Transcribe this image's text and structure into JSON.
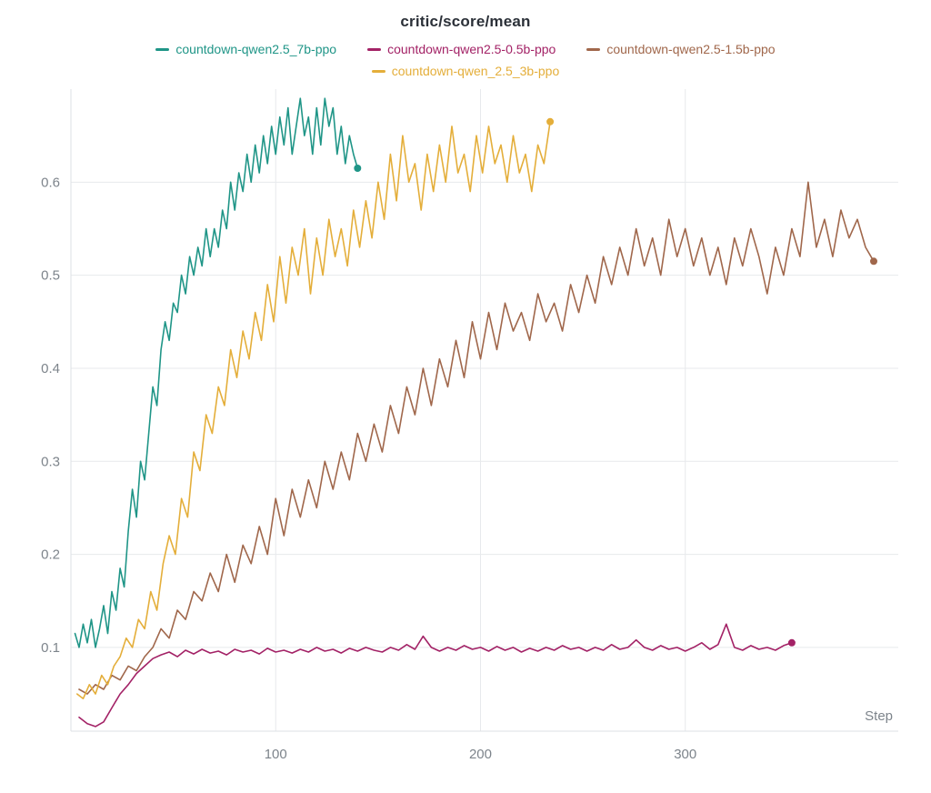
{
  "chart_data": {
    "type": "line",
    "title": "critic/score/mean",
    "xlabel": "Step",
    "ylabel": "",
    "x_ticks": [
      100,
      200,
      300
    ],
    "y_ticks": [
      0.1,
      0.2,
      0.3,
      0.4,
      0.5,
      0.6
    ],
    "xlim": [
      0,
      404
    ],
    "ylim": [
      0.01,
      0.7
    ],
    "grid": true,
    "legend_position": "top",
    "legend_rows": [
      [
        0,
        1,
        2
      ],
      [
        3
      ]
    ],
    "series": [
      {
        "name": "countdown-qwen2.5_7b-ppo",
        "color": "#1f9587",
        "x_start": 2,
        "x_step": 2,
        "end_marker": true,
        "values": [
          0.115,
          0.1,
          0.125,
          0.105,
          0.13,
          0.1,
          0.12,
          0.145,
          0.115,
          0.16,
          0.14,
          0.185,
          0.165,
          0.225,
          0.27,
          0.24,
          0.3,
          0.28,
          0.33,
          0.38,
          0.36,
          0.42,
          0.45,
          0.43,
          0.47,
          0.46,
          0.5,
          0.48,
          0.52,
          0.5,
          0.53,
          0.51,
          0.55,
          0.52,
          0.55,
          0.53,
          0.57,
          0.55,
          0.6,
          0.57,
          0.61,
          0.59,
          0.63,
          0.6,
          0.64,
          0.61,
          0.65,
          0.62,
          0.66,
          0.63,
          0.67,
          0.64,
          0.68,
          0.63,
          0.66,
          0.69,
          0.65,
          0.67,
          0.63,
          0.68,
          0.64,
          0.69,
          0.66,
          0.68,
          0.63,
          0.66,
          0.62,
          0.65,
          0.63,
          0.615
        ]
      },
      {
        "name": "countdown-qwen2.5-0.5b-ppo",
        "color": "#a32266",
        "x_start": 4,
        "x_step": 4,
        "end_marker": true,
        "values": [
          0.025,
          0.018,
          0.015,
          0.02,
          0.035,
          0.05,
          0.06,
          0.072,
          0.08,
          0.088,
          0.092,
          0.095,
          0.09,
          0.097,
          0.093,
          0.098,
          0.094,
          0.096,
          0.092,
          0.098,
          0.095,
          0.097,
          0.093,
          0.099,
          0.095,
          0.097,
          0.094,
          0.098,
          0.095,
          0.1,
          0.096,
          0.098,
          0.094,
          0.099,
          0.096,
          0.1,
          0.097,
          0.095,
          0.1,
          0.097,
          0.103,
          0.098,
          0.112,
          0.1,
          0.096,
          0.1,
          0.097,
          0.102,
          0.098,
          0.1,
          0.096,
          0.101,
          0.097,
          0.1,
          0.095,
          0.099,
          0.096,
          0.1,
          0.097,
          0.102,
          0.098,
          0.1,
          0.096,
          0.1,
          0.097,
          0.103,
          0.098,
          0.1,
          0.108,
          0.1,
          0.097,
          0.102,
          0.098,
          0.1,
          0.096,
          0.1,
          0.105,
          0.098,
          0.103,
          0.125,
          0.1,
          0.097,
          0.102,
          0.098,
          0.1,
          0.097,
          0.102,
          0.105
        ]
      },
      {
        "name": "countdown-qwen2.5-1.5b-ppo",
        "color": "#a0674b",
        "x_start": 4,
        "x_step": 4,
        "end_marker": true,
        "values": [
          0.055,
          0.05,
          0.06,
          0.055,
          0.07,
          0.065,
          0.08,
          0.075,
          0.09,
          0.1,
          0.12,
          0.11,
          0.14,
          0.13,
          0.16,
          0.15,
          0.18,
          0.16,
          0.2,
          0.17,
          0.21,
          0.19,
          0.23,
          0.2,
          0.26,
          0.22,
          0.27,
          0.24,
          0.28,
          0.25,
          0.3,
          0.27,
          0.31,
          0.28,
          0.33,
          0.3,
          0.34,
          0.31,
          0.36,
          0.33,
          0.38,
          0.35,
          0.4,
          0.36,
          0.41,
          0.38,
          0.43,
          0.39,
          0.45,
          0.41,
          0.46,
          0.42,
          0.47,
          0.44,
          0.46,
          0.43,
          0.48,
          0.45,
          0.47,
          0.44,
          0.49,
          0.46,
          0.5,
          0.47,
          0.52,
          0.49,
          0.53,
          0.5,
          0.55,
          0.51,
          0.54,
          0.5,
          0.56,
          0.52,
          0.55,
          0.51,
          0.54,
          0.5,
          0.53,
          0.49,
          0.54,
          0.51,
          0.55,
          0.52,
          0.48,
          0.53,
          0.5,
          0.55,
          0.52,
          0.6,
          0.53,
          0.56,
          0.52,
          0.57,
          0.54,
          0.56,
          0.53,
          0.515
        ]
      },
      {
        "name": "countdown-qwen_2.5_3b-ppo",
        "color": "#e4ae3a",
        "x_start": 3,
        "x_step": 3,
        "end_marker": true,
        "values": [
          0.05,
          0.045,
          0.06,
          0.05,
          0.07,
          0.06,
          0.08,
          0.09,
          0.11,
          0.1,
          0.13,
          0.12,
          0.16,
          0.14,
          0.19,
          0.22,
          0.2,
          0.26,
          0.24,
          0.31,
          0.29,
          0.35,
          0.33,
          0.38,
          0.36,
          0.42,
          0.39,
          0.44,
          0.41,
          0.46,
          0.43,
          0.49,
          0.45,
          0.52,
          0.47,
          0.53,
          0.5,
          0.55,
          0.48,
          0.54,
          0.5,
          0.56,
          0.52,
          0.55,
          0.51,
          0.57,
          0.53,
          0.58,
          0.54,
          0.6,
          0.56,
          0.63,
          0.58,
          0.65,
          0.6,
          0.62,
          0.57,
          0.63,
          0.59,
          0.64,
          0.6,
          0.66,
          0.61,
          0.63,
          0.59,
          0.65,
          0.61,
          0.66,
          0.62,
          0.64,
          0.6,
          0.65,
          0.61,
          0.63,
          0.59,
          0.64,
          0.62,
          0.665
        ]
      }
    ]
  }
}
